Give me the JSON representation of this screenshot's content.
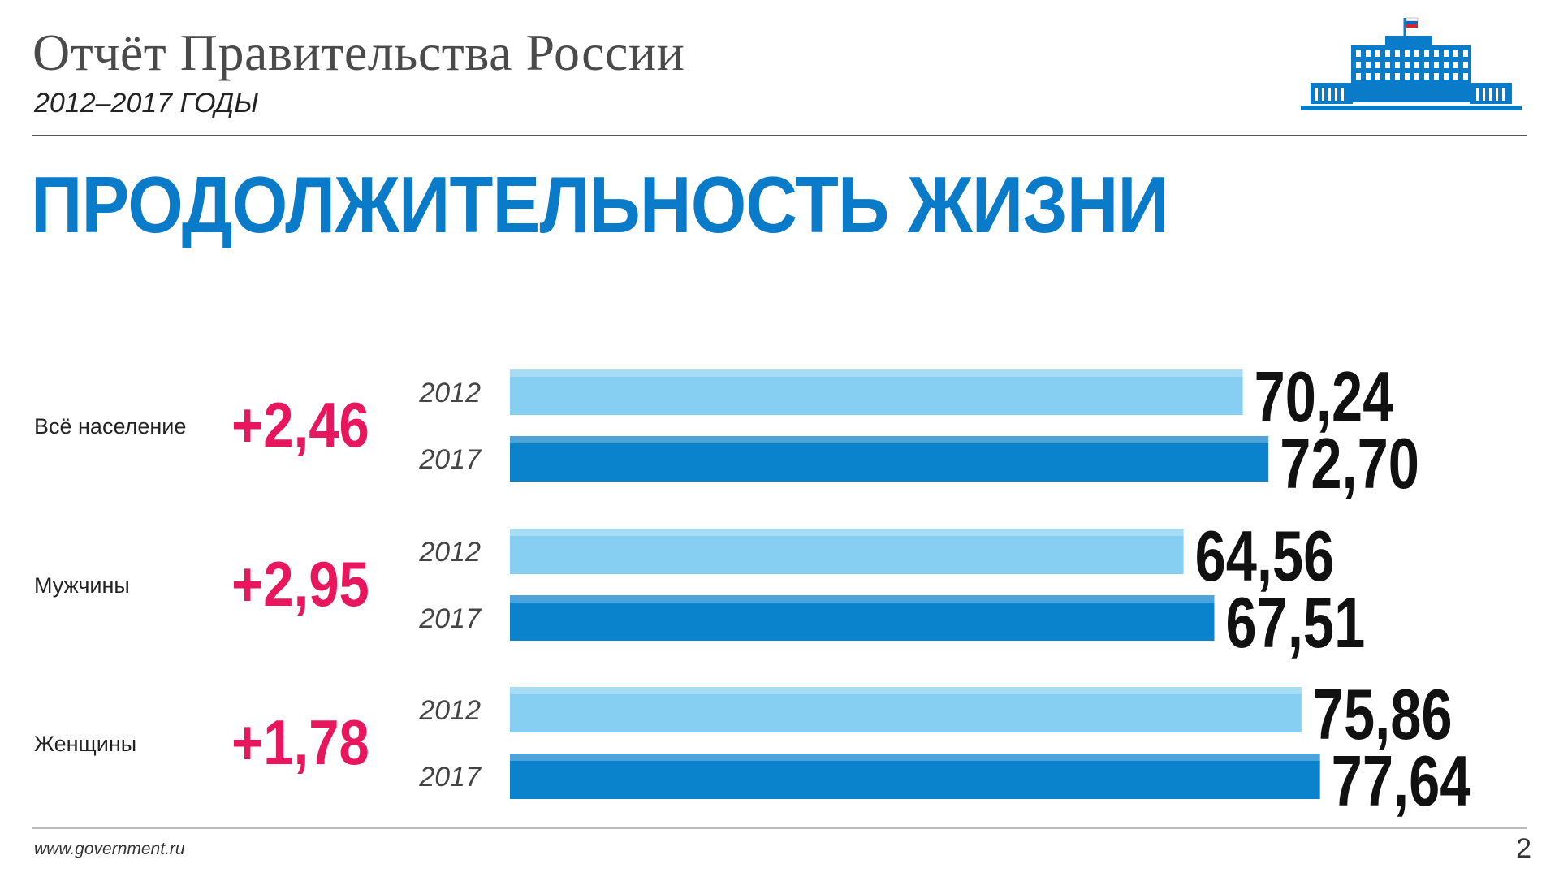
{
  "header": {
    "title": "Отчёт Правительства России",
    "subtitle": "2012–2017 ГОДЫ",
    "logo_icon": "government-building-icon"
  },
  "page_title": "ПРОДОЛЖИТЕЛЬНОСТЬ ЖИЗНИ",
  "chart_data": {
    "type": "bar",
    "orientation": "horizontal",
    "xlim": [
      0,
      82
    ],
    "groups": [
      {
        "name": "Всё население",
        "delta": "+2,46",
        "bars": [
          {
            "year": "2012",
            "value": 70.24,
            "label": "70,24"
          },
          {
            "year": "2017",
            "value": 72.7,
            "label": "72,70"
          }
        ]
      },
      {
        "name": "Мужчины",
        "delta": "+2,95",
        "bars": [
          {
            "year": "2012",
            "value": 64.56,
            "label": "64,56"
          },
          {
            "year": "2017",
            "value": 67.51,
            "label": "67,51"
          }
        ]
      },
      {
        "name": "Женщины",
        "delta": "+1,78",
        "bars": [
          {
            "year": "2012",
            "value": 75.86,
            "label": "75,86"
          },
          {
            "year": "2017",
            "value": 77.64,
            "label": "77,64"
          }
        ]
      }
    ],
    "colors": {
      "2012": "#86cff2",
      "2017": "#0a82cc",
      "delta": "#e8175d"
    },
    "grid": false,
    "legend": "none"
  },
  "footer": {
    "url": "www.government.ru",
    "page_number": "2"
  }
}
